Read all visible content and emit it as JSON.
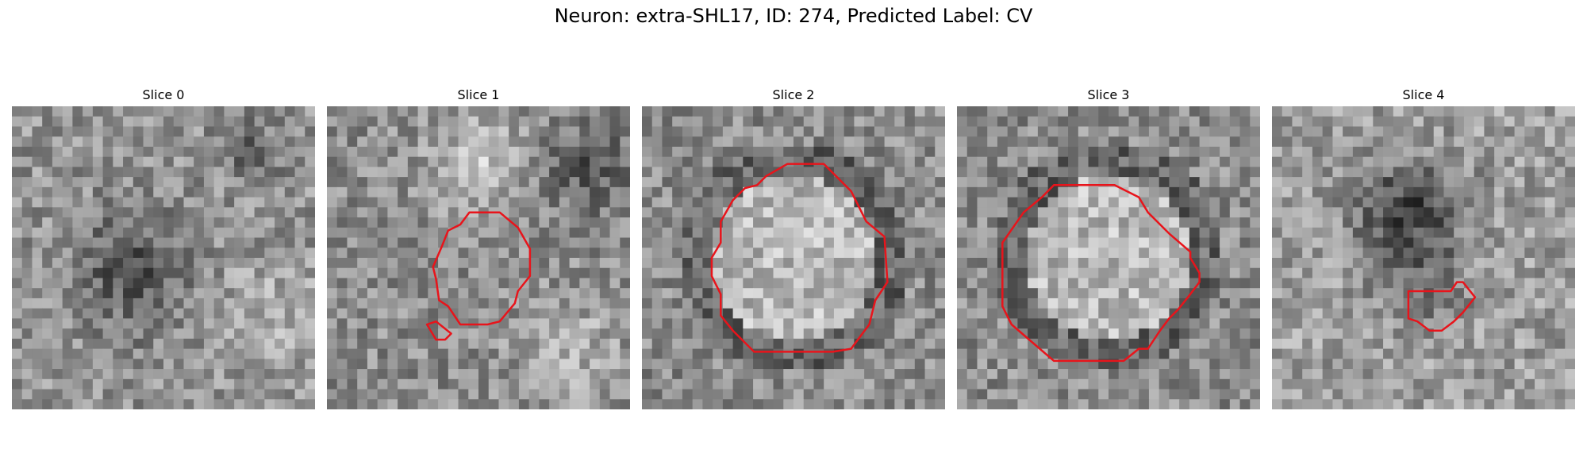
{
  "figure": {
    "title": "Neuron: extra-SHL17, ID: 274, Predicted Label: CV"
  },
  "colors": {
    "contour": "#e8141b"
  },
  "slices": [
    {
      "title": "Slice 0",
      "seed": 11,
      "variant": "dark-band",
      "contours": []
    },
    {
      "title": "Slice 1",
      "seed": 23,
      "variant": "bright-upper",
      "contours": [
        [
          [
            0.47,
            0.35
          ],
          [
            0.57,
            0.35
          ],
          [
            0.63,
            0.4
          ],
          [
            0.67,
            0.47
          ],
          [
            0.67,
            0.56
          ],
          [
            0.63,
            0.61
          ],
          [
            0.62,
            0.65
          ],
          [
            0.57,
            0.71
          ],
          [
            0.53,
            0.72
          ],
          [
            0.44,
            0.72
          ],
          [
            0.4,
            0.66
          ],
          [
            0.37,
            0.64
          ],
          [
            0.36,
            0.57
          ],
          [
            0.35,
            0.53
          ],
          [
            0.38,
            0.46
          ],
          [
            0.4,
            0.41
          ],
          [
            0.44,
            0.39
          ]
        ],
        [
          [
            0.33,
            0.72
          ],
          [
            0.36,
            0.71
          ],
          [
            0.41,
            0.75
          ],
          [
            0.39,
            0.77
          ],
          [
            0.36,
            0.77
          ]
        ]
      ]
    },
    {
      "title": "Slice 2",
      "seed": 37,
      "variant": "ring",
      "contours": [
        [
          [
            0.48,
            0.19
          ],
          [
            0.6,
            0.19
          ],
          [
            0.69,
            0.28
          ],
          [
            0.74,
            0.38
          ],
          [
            0.8,
            0.43
          ],
          [
            0.81,
            0.58
          ],
          [
            0.77,
            0.64
          ],
          [
            0.75,
            0.72
          ],
          [
            0.72,
            0.76
          ],
          [
            0.69,
            0.8
          ],
          [
            0.63,
            0.81
          ],
          [
            0.37,
            0.81
          ],
          [
            0.3,
            0.74
          ],
          [
            0.26,
            0.69
          ],
          [
            0.26,
            0.62
          ],
          [
            0.23,
            0.56
          ],
          [
            0.23,
            0.5
          ],
          [
            0.26,
            0.45
          ],
          [
            0.26,
            0.38
          ],
          [
            0.3,
            0.31
          ],
          [
            0.34,
            0.27
          ],
          [
            0.38,
            0.26
          ],
          [
            0.41,
            0.23
          ]
        ]
      ]
    },
    {
      "title": "Slice 3",
      "seed": 53,
      "variant": "ring",
      "contours": [
        [
          [
            0.32,
            0.26
          ],
          [
            0.52,
            0.26
          ],
          [
            0.6,
            0.3
          ],
          [
            0.63,
            0.35
          ],
          [
            0.7,
            0.42
          ],
          [
            0.77,
            0.48
          ],
          [
            0.77,
            0.5
          ],
          [
            0.8,
            0.55
          ],
          [
            0.8,
            0.58
          ],
          [
            0.77,
            0.62
          ],
          [
            0.73,
            0.67
          ],
          [
            0.7,
            0.7
          ],
          [
            0.67,
            0.74
          ],
          [
            0.63,
            0.8
          ],
          [
            0.6,
            0.8
          ],
          [
            0.55,
            0.84
          ],
          [
            0.32,
            0.84
          ],
          [
            0.25,
            0.78
          ],
          [
            0.18,
            0.72
          ],
          [
            0.15,
            0.66
          ],
          [
            0.15,
            0.45
          ],
          [
            0.22,
            0.35
          ],
          [
            0.28,
            0.3
          ]
        ]
      ]
    },
    {
      "title": "Slice 4",
      "seed": 71,
      "variant": "dark-upper",
      "contours": [
        [
          [
            0.45,
            0.61
          ],
          [
            0.59,
            0.61
          ],
          [
            0.61,
            0.58
          ],
          [
            0.63,
            0.58
          ],
          [
            0.67,
            0.63
          ],
          [
            0.63,
            0.68
          ],
          [
            0.6,
            0.71
          ],
          [
            0.56,
            0.74
          ],
          [
            0.52,
            0.74
          ],
          [
            0.48,
            0.71
          ],
          [
            0.45,
            0.7
          ]
        ]
      ]
    }
  ]
}
